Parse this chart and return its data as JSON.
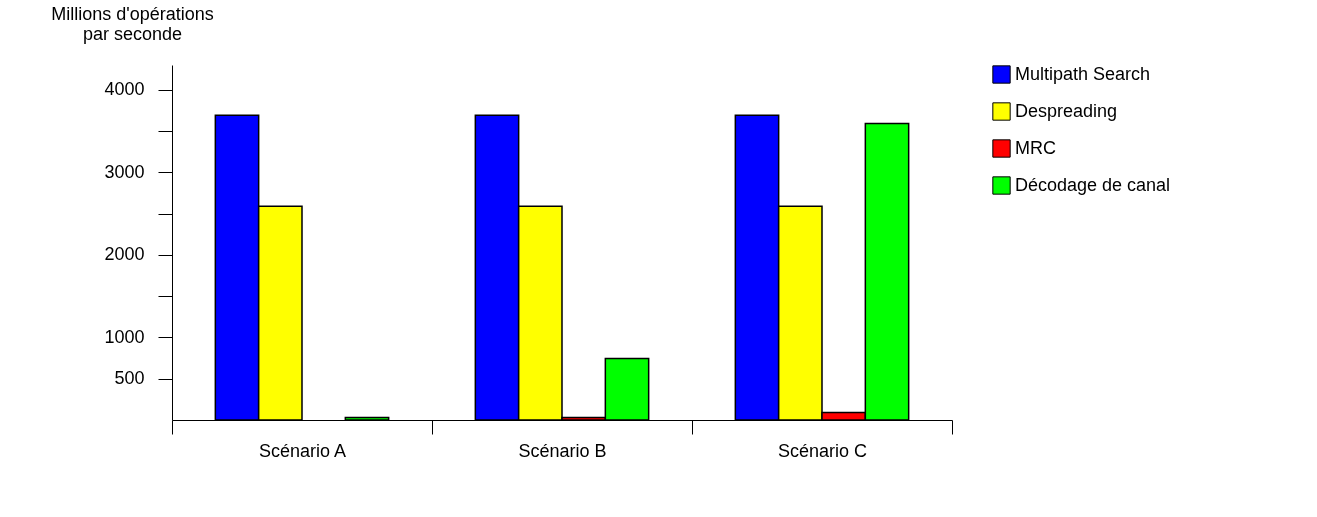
{
  "chart_data": {
    "type": "bar",
    "ylabel": "Millions d'opérations\npar seconde",
    "categories": [
      "Scénario A",
      "Scénario B",
      "Scénario C"
    ],
    "series": [
      {
        "name": "Multipath Search",
        "color": "#0000ff",
        "values": [
          3690,
          3690,
          3690
        ]
      },
      {
        "name": "Despreading",
        "color": "#ffff00",
        "values": [
          2590,
          2590,
          2590
        ]
      },
      {
        "name": "MRC",
        "color": "#ff0000",
        "values": [
          null,
          30,
          90
        ]
      },
      {
        "name": "Décodage de canal",
        "color": "#00ff00",
        "values": [
          30,
          745,
          3590
        ]
      }
    ],
    "ylim": [
      0,
      4300
    ],
    "yticks": [
      500,
      1000,
      {
        "value": 1500,
        "label": null
      },
      2000,
      {
        "value": 2500,
        "label": null
      },
      3000,
      {
        "value": 3500,
        "label": null
      },
      4000
    ],
    "grid": false,
    "legend": "right"
  }
}
